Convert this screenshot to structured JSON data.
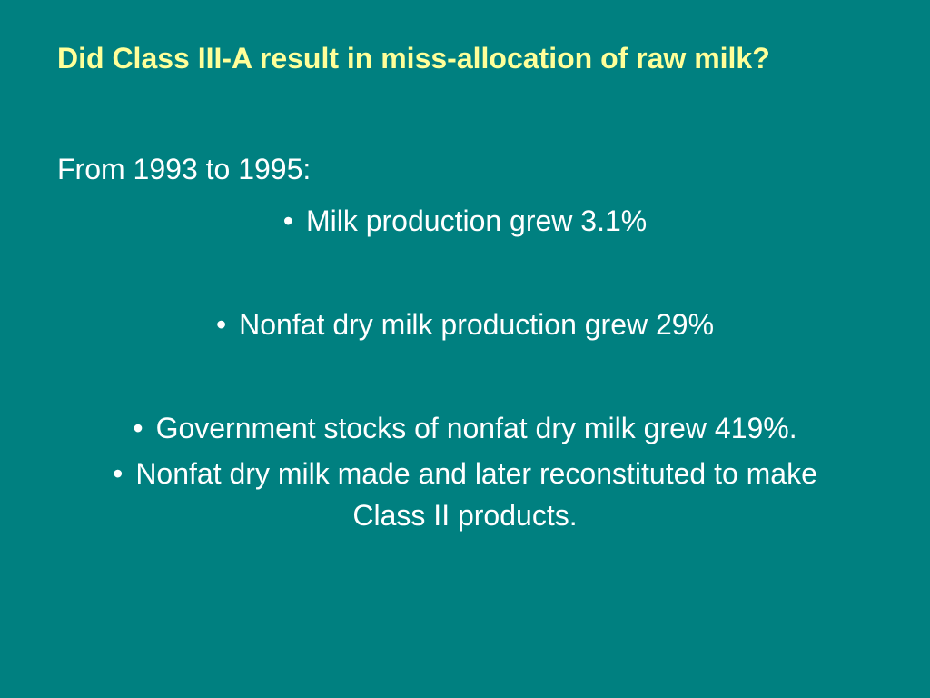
{
  "slide": {
    "title": "Did Class III-A result in miss-allocation of raw milk?",
    "intro": "From 1993 to 1995:",
    "bullets": [
      "Milk production grew 3.1%",
      "Nonfat dry milk production grew 29%",
      "Government stocks of nonfat dry milk grew 419%.",
      "Nonfat dry milk made and later reconstituted to make Class II products."
    ]
  }
}
